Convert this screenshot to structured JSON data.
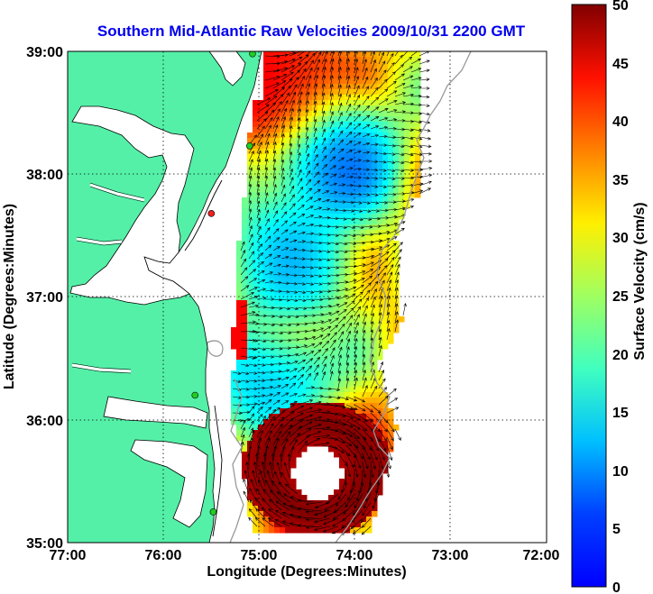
{
  "chart_data": {
    "type": "heatmap",
    "title": "Southern Mid-Atlantic Raw Velocities 2009/10/31 2200 GMT",
    "xlabel": "Longitude (Degrees:Minutes)",
    "ylabel": "Latitude (Degrees:Minutes)",
    "xlim": [
      -77,
      -72
    ],
    "ylim": [
      35,
      39
    ],
    "x_ticks": [
      {
        "value": -77,
        "label": "77:00"
      },
      {
        "value": -76,
        "label": "76:00"
      },
      {
        "value": -75,
        "label": "75:00"
      },
      {
        "value": -74,
        "label": "74:00"
      },
      {
        "value": -73,
        "label": "73:00"
      },
      {
        "value": -72,
        "label": "72:00"
      }
    ],
    "y_ticks": [
      {
        "value": 35,
        "label": "35:00"
      },
      {
        "value": 36,
        "label": "36:00"
      },
      {
        "value": 37,
        "label": "37:00"
      },
      {
        "value": 38,
        "label": "38:00"
      },
      {
        "value": 39,
        "label": "39:00"
      }
    ],
    "grid": true,
    "colorbar": {
      "label": "Surface Velocity (cm/s)",
      "range": [
        0,
        50
      ],
      "ticks": [
        {
          "value": 0,
          "label": "0"
        },
        {
          "value": 5,
          "label": "5"
        },
        {
          "value": 10,
          "label": "10"
        },
        {
          "value": 15,
          "label": "15"
        },
        {
          "value": 20,
          "label": "20"
        },
        {
          "value": 25,
          "label": "25"
        },
        {
          "value": 30,
          "label": "30"
        },
        {
          "value": 35,
          "label": "35"
        },
        {
          "value": 40,
          "label": "40"
        },
        {
          "value": 45,
          "label": "45"
        },
        {
          "value": 50,
          "label": "50"
        }
      ],
      "colormap": "jet"
    },
    "velocity_field": {
      "lon_range": [
        -75.1,
        -73.3
      ],
      "lat_range": [
        35.1,
        38.95
      ],
      "features": [
        {
          "kind": "jet",
          "lon": -74.3,
          "lat": 35.6,
          "speed_cm_s": 50
        },
        {
          "kind": "calm",
          "lon": -74.2,
          "lat": 38.1,
          "speed_cm_s": 8
        },
        {
          "kind": "calm",
          "lon": -74.7,
          "lat": 37.3,
          "speed_cm_s": 13
        },
        {
          "kind": "calm",
          "lon": -74.8,
          "lat": 36.2,
          "speed_cm_s": 12
        },
        {
          "kind": "strong",
          "lon": -74.8,
          "lat": 38.7,
          "speed_cm_s": 48
        }
      ]
    },
    "stations": [
      {
        "lon": -75.07,
        "lat": 38.98,
        "color": "#22cc22"
      },
      {
        "lon": -75.1,
        "lat": 38.23,
        "color": "#22cc22"
      },
      {
        "lon": -75.5,
        "lat": 37.68,
        "color": "#ee2222"
      },
      {
        "lon": -75.67,
        "lat": 36.2,
        "color": "#22cc22"
      },
      {
        "lon": -75.48,
        "lat": 35.25,
        "color": "#22cc22"
      }
    ]
  },
  "colors": {
    "land": "#55f0a8",
    "title": "#0000ee",
    "coast": "#000000",
    "bathymetry": "#999999"
  }
}
